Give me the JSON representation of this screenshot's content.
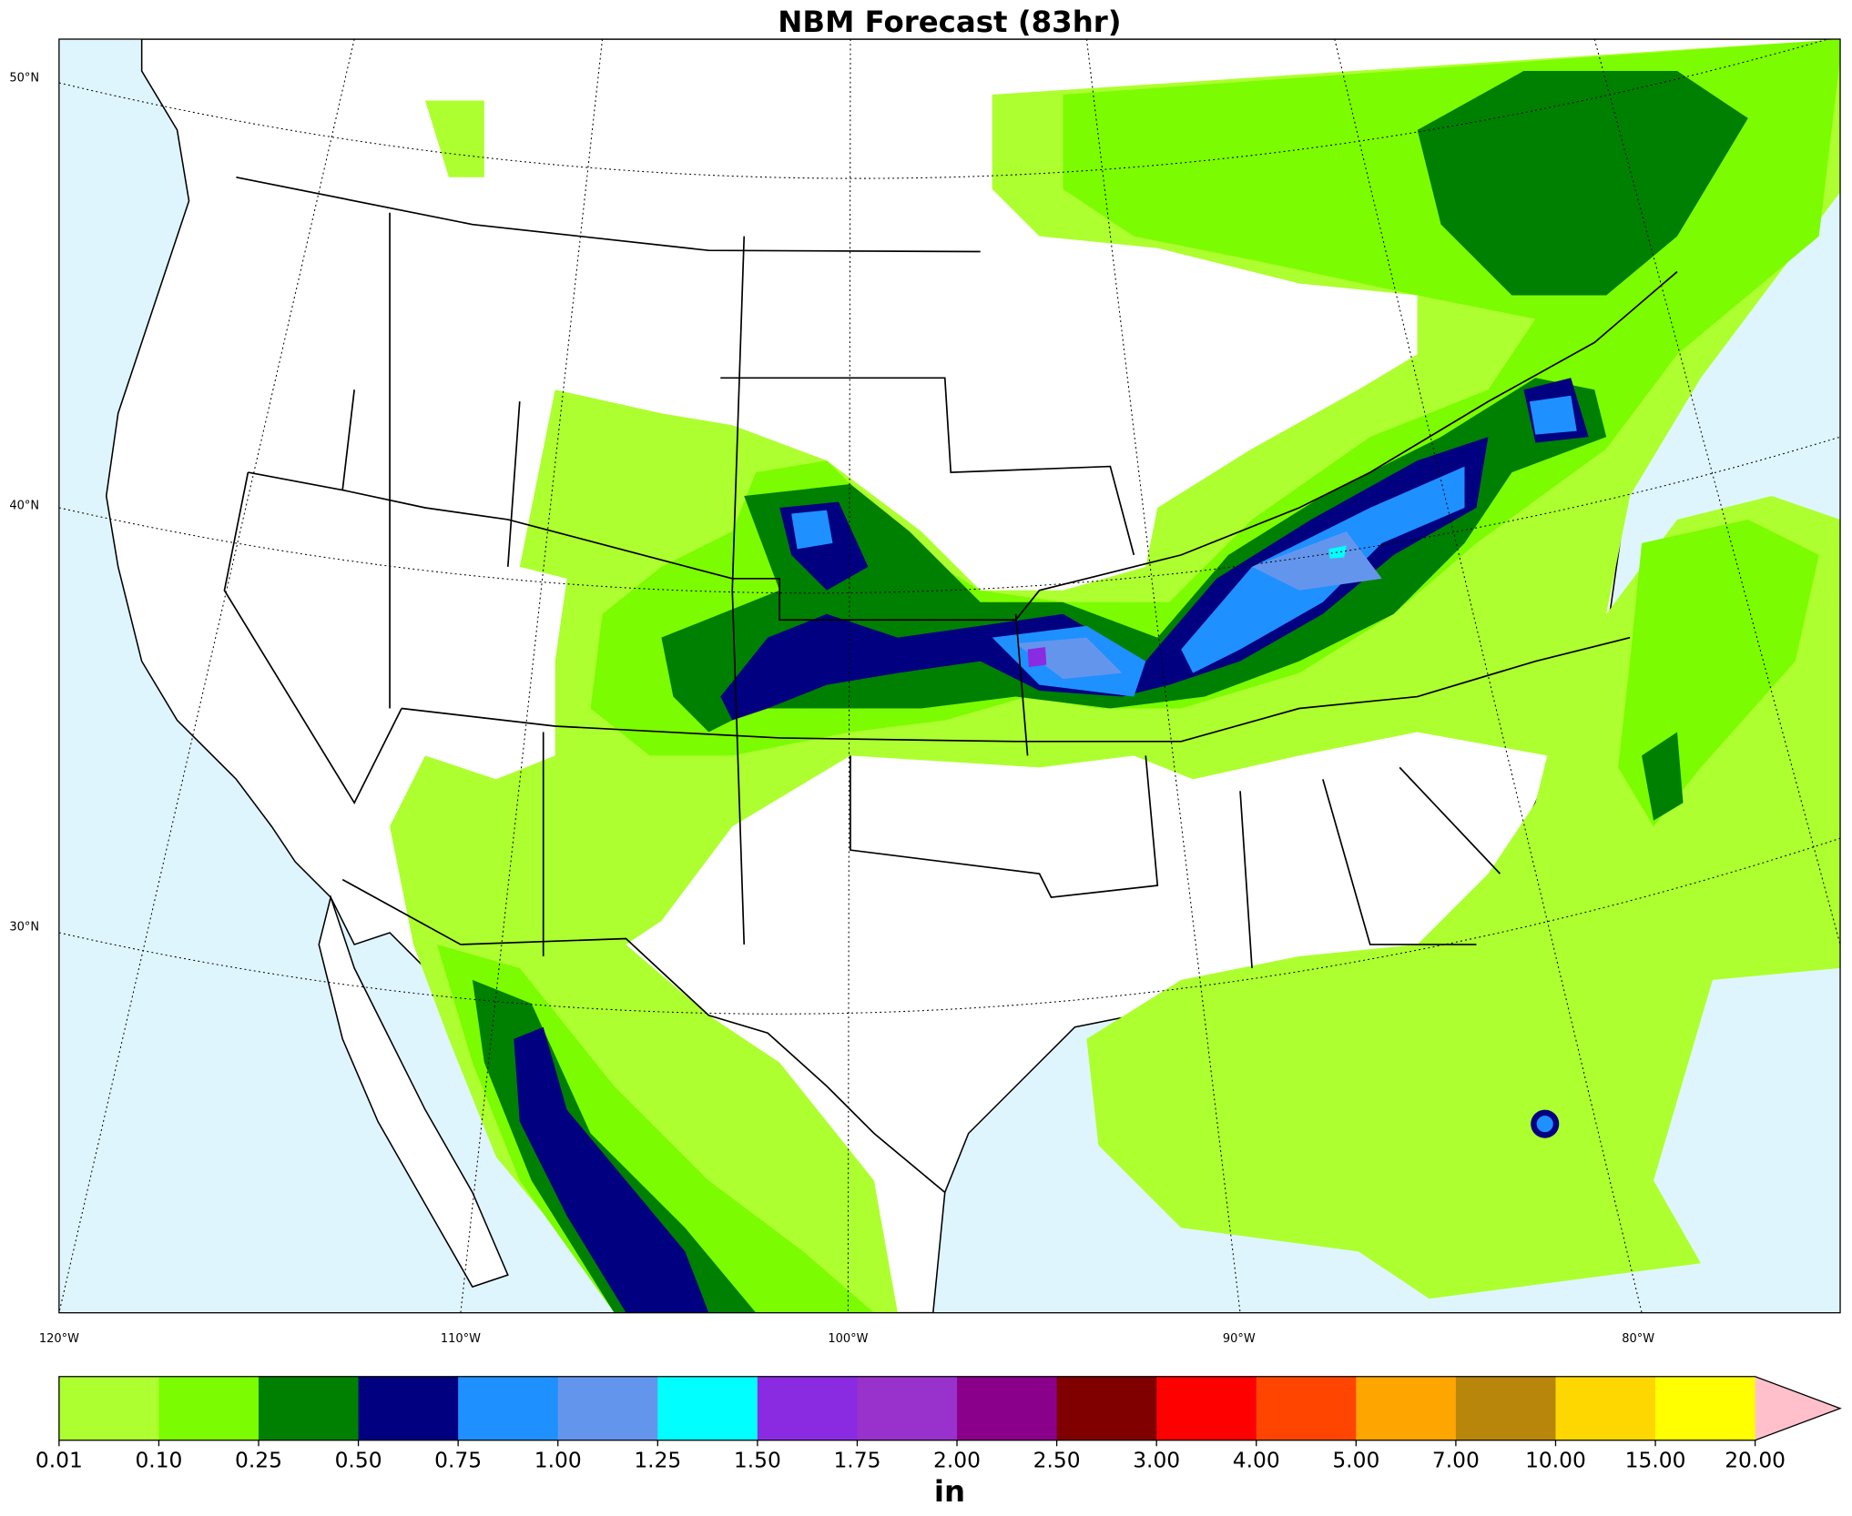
{
  "header": {
    "title": "NBM Forecast (83hr)"
  },
  "map": {
    "lat_labels": [
      "50°N",
      "40°N",
      "30°N"
    ],
    "lon_labels": [
      "120°W",
      "110°W",
      "100°W",
      "90°W",
      "80°W"
    ]
  },
  "colorbar": {
    "labels": [
      "0.01",
      "0.10",
      "0.25",
      "0.50",
      "0.75",
      "1.00",
      "1.25",
      "1.50",
      "1.75",
      "2.00",
      "2.50",
      "3.00",
      "4.00",
      "5.00",
      "7.00",
      "10.00",
      "15.00",
      "20.00"
    ],
    "colors": [
      "#adff2f",
      "#7cfc00",
      "#008000",
      "#000080",
      "#1e90ff",
      "#6495ed",
      "#00ffff",
      "#8a2be2",
      "#9932cc",
      "#8b008b",
      "#800000",
      "#ff0000",
      "#ff4500",
      "#ffa500",
      "#b8860b",
      "#ffd700",
      "#ffff00"
    ],
    "extend_color": "#ffc0cb",
    "unit": "in"
  }
}
